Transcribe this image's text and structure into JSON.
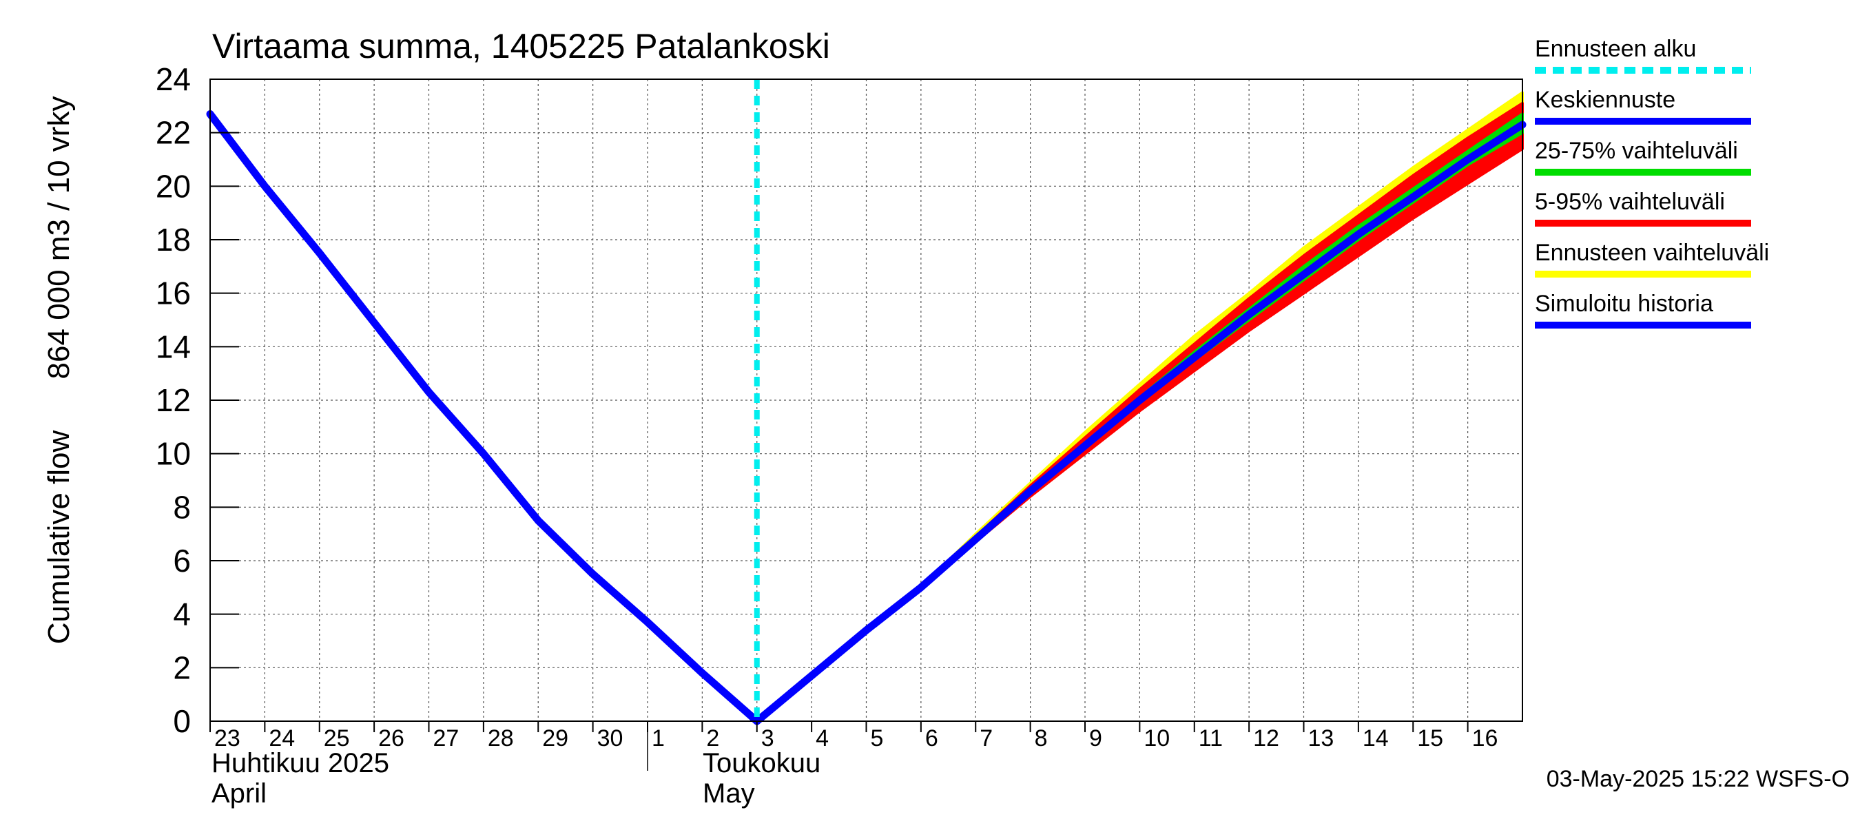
{
  "chart_data": {
    "type": "line",
    "title": "Virtaama summa, 1405225 Patalankoski",
    "ylabel_line1": "Cumulative flow",
    "ylabel_line2": "864 000 m3 / 10 vrky",
    "xlabel": "",
    "ylim": [
      0,
      24
    ],
    "yticks": [
      0,
      2,
      4,
      6,
      8,
      10,
      12,
      14,
      16,
      18,
      20,
      22,
      24
    ],
    "x_range_days": [
      0,
      24
    ],
    "day_ticks": [
      {
        "label": "23",
        "day": 0
      },
      {
        "label": "24",
        "day": 1
      },
      {
        "label": "25",
        "day": 2
      },
      {
        "label": "26",
        "day": 3
      },
      {
        "label": "27",
        "day": 4
      },
      {
        "label": "28",
        "day": 5
      },
      {
        "label": "29",
        "day": 6
      },
      {
        "label": "30",
        "day": 7
      },
      {
        "label": "1",
        "day": 8
      },
      {
        "label": "2",
        "day": 9
      },
      {
        "label": "3",
        "day": 10
      },
      {
        "label": "4",
        "day": 11
      },
      {
        "label": "5",
        "day": 12
      },
      {
        "label": "6",
        "day": 13
      },
      {
        "label": "7",
        "day": 14
      },
      {
        "label": "8",
        "day": 15
      },
      {
        "label": "9",
        "day": 16
      },
      {
        "label": "10",
        "day": 17
      },
      {
        "label": "11",
        "day": 18
      },
      {
        "label": "12",
        "day": 19
      },
      {
        "label": "13",
        "day": 20
      },
      {
        "label": "14",
        "day": 21
      },
      {
        "label": "15",
        "day": 22
      },
      {
        "label": "16",
        "day": 23
      }
    ],
    "month_labels": [
      {
        "line1": "Huhtikuu  2025",
        "line2": "April",
        "start_day": 0
      },
      {
        "line1": "Toukokuu",
        "line2": "May",
        "start_day": 8
      }
    ],
    "month_separator_day": 8,
    "forecast_start_day": 10,
    "series": [
      {
        "name": "Simuloitu historia",
        "color": "#0000ff",
        "x": [
          0,
          1,
          2,
          3,
          4,
          5,
          6,
          7,
          8,
          9,
          10
        ],
        "y": [
          22.7,
          20.0,
          17.5,
          14.9,
          12.3,
          10.0,
          7.5,
          5.5,
          3.7,
          1.8,
          0.0
        ]
      },
      {
        "name": "Keskiennuste",
        "color": "#0000ff",
        "x": [
          10,
          11,
          12,
          13,
          14,
          15,
          16,
          17,
          18,
          19,
          20,
          21,
          22,
          23,
          24
        ],
        "y": [
          0.0,
          1.7,
          3.4,
          5.0,
          6.8,
          8.6,
          10.3,
          12.0,
          13.6,
          15.2,
          16.7,
          18.2,
          19.6,
          21.0,
          22.3
        ]
      }
    ],
    "bands": [
      {
        "name": "Ennusteen vaihteluväli",
        "color": "#ffff00",
        "x": [
          10,
          11,
          12,
          13,
          14,
          15,
          16,
          17,
          18,
          19,
          20,
          21,
          22,
          23,
          24
        ],
        "low": [
          0.0,
          1.7,
          3.4,
          5.0,
          6.8,
          8.5,
          10.1,
          11.7,
          13.2,
          14.7,
          16.1,
          17.5,
          18.9,
          20.2,
          21.5
        ],
        "high": [
          0.0,
          1.7,
          3.4,
          5.0,
          7.0,
          8.9,
          10.8,
          12.6,
          14.4,
          16.0,
          17.7,
          19.2,
          20.7,
          22.1,
          23.5
        ]
      },
      {
        "name": "5-95% vaihteluväli",
        "color": "#ff0000",
        "x": [
          10,
          11,
          12,
          13,
          14,
          15,
          16,
          17,
          18,
          19,
          20,
          21,
          22,
          23,
          24
        ],
        "low": [
          0.0,
          1.7,
          3.4,
          5.0,
          6.7,
          8.4,
          10.0,
          11.6,
          13.1,
          14.6,
          16.0,
          17.4,
          18.8,
          20.1,
          21.4
        ],
        "high": [
          0.0,
          1.7,
          3.4,
          5.0,
          6.9,
          8.8,
          10.6,
          12.4,
          14.1,
          15.8,
          17.4,
          18.9,
          20.4,
          21.8,
          23.1
        ]
      },
      {
        "name": "25-75% vaihteluväli",
        "color": "#00dd00",
        "x": [
          10,
          11,
          12,
          13,
          14,
          15,
          16,
          17,
          18,
          19,
          20,
          21,
          22,
          23,
          24
        ],
        "low": [
          0.0,
          1.7,
          3.4,
          5.0,
          6.8,
          8.5,
          10.2,
          11.9,
          13.5,
          15.0,
          16.5,
          18.0,
          19.4,
          20.8,
          22.0
        ],
        "high": [
          0.0,
          1.7,
          3.4,
          5.0,
          6.8,
          8.7,
          10.4,
          12.1,
          13.8,
          15.4,
          17.0,
          18.5,
          19.9,
          21.3,
          22.7
        ]
      }
    ],
    "legend": [
      {
        "label": "Ennusteen alku",
        "color": "#00eeee",
        "style": "dashed"
      },
      {
        "label": "Keskiennuste",
        "color": "#0000ff",
        "style": "solid"
      },
      {
        "label": "25-75% vaihteluväli",
        "color": "#00dd00",
        "style": "solid"
      },
      {
        "label": "5-95% vaihteluväli",
        "color": "#ff0000",
        "style": "solid"
      },
      {
        "label": "Ennusteen vaihteluväli",
        "color": "#ffff00",
        "style": "solid"
      },
      {
        "label": "Simuloitu historia",
        "color": "#0000ff",
        "style": "solid"
      }
    ],
    "legend_position": "right",
    "grid": true,
    "footer": "03-May-2025 15:22 WSFS-O",
    "forecast_line_color": "#00eeee"
  }
}
